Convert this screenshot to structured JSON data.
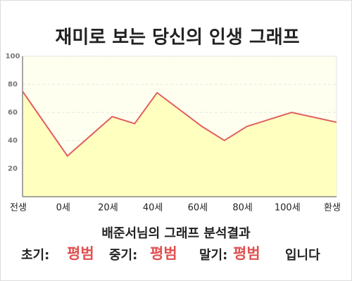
{
  "chart_data": {
    "type": "area",
    "title": "재미로 보는 당신의 인생 그래프",
    "x": [
      -20,
      0,
      20,
      30,
      40,
      60,
      70,
      80,
      100,
      120
    ],
    "series": [
      {
        "color": "#e06060",
        "fill": "#ffffc0",
        "values": [
          75,
          29,
          57,
          52,
          74,
          50,
          40,
          50,
          60,
          53
        ]
      }
    ],
    "xlim": [
      -20,
      120
    ],
    "xticks": [
      {
        "value": -20,
        "label": "전생"
      },
      {
        "value": 0,
        "label": "0세"
      },
      {
        "value": 20,
        "label": "20세"
      },
      {
        "value": 40,
        "label": "40세"
      },
      {
        "value": 60,
        "label": "60세"
      },
      {
        "value": 80,
        "label": "80세"
      },
      {
        "value": 100,
        "label": "100세"
      },
      {
        "value": 120,
        "label": "환생"
      }
    ],
    "ylim": [
      0,
      100
    ],
    "yticks": [
      20,
      40,
      60,
      80,
      100
    ],
    "grid": true
  },
  "result": {
    "heading": "배준서님의 그래프 분석결과",
    "early_label": "초기:",
    "early": "평범",
    "middle_label": "중기:",
    "middle": "평범",
    "late_label": "말기:",
    "late": "평범",
    "ending": "입니다"
  }
}
